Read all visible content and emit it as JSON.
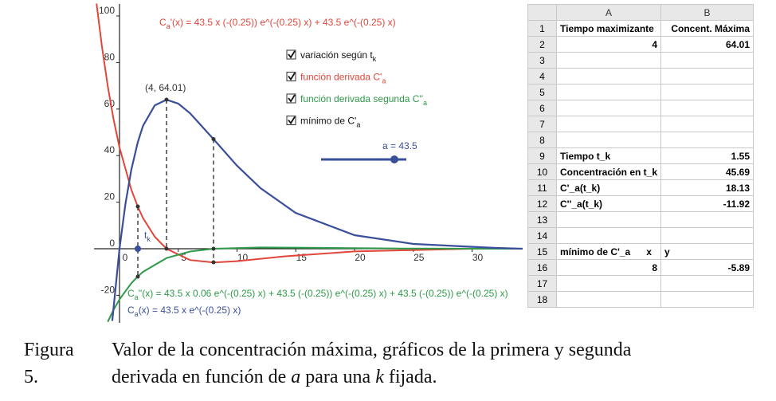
{
  "graph": {
    "y_ticks": [
      "100",
      "80",
      "60",
      "40",
      "20",
      "0",
      "-20"
    ],
    "x_ticks": [
      "0",
      "5",
      "10",
      "15",
      "20",
      "25",
      "30"
    ],
    "formulas": [
      {
        "lead": "C",
        "sub": "a",
        "rest": "'(x) = 43.5 x (-(0.25)) e^(-(0.25) x) + 43.5 e^(-(0.25) x)"
      },
      {
        "lead": "C",
        "sub": "a",
        "rest": "''(x) = 43.5 x 0.06 e^(-(0.25) x) + 43.5 (-(0.25)) e^(-(0.25) x) + 43.5 (-(0.25)) e^(-(0.25) x)"
      },
      {
        "lead": "C",
        "sub": "a",
        "rest": "(x) = 43.5 x e^(-(0.25) x)"
      }
    ],
    "checkboxes": [
      {
        "text": "variación según t",
        "sub": "k"
      },
      {
        "text": "función derivada C'",
        "sub": "a"
      },
      {
        "text": "función derivada segunda C''",
        "sub": "a"
      },
      {
        "text": "mínimo de C'",
        "sub": "a"
      }
    ],
    "point_label": "(4, 64.01)",
    "t_label": {
      "text": "t",
      "sub": "k"
    },
    "slider_label": "a = 43.5"
  },
  "spreadsheet": {
    "columns": [
      "A",
      "B"
    ],
    "rows": [
      {
        "n": "1",
        "a": "Tiempo maximizante",
        "b": "Concent. Máxima"
      },
      {
        "n": "2",
        "a": "4",
        "b": "64.01"
      },
      {
        "n": "3",
        "a": null,
        "b": null
      },
      {
        "n": "4",
        "a": null,
        "b": null
      },
      {
        "n": "5",
        "a": null,
        "b": null
      },
      {
        "n": "6",
        "a": null,
        "b": null
      },
      {
        "n": "7",
        "a": null,
        "b": null
      },
      {
        "n": "8",
        "a": null,
        "b": null
      },
      {
        "n": "9",
        "a": "Tiempo t_k",
        "b": "1.55"
      },
      {
        "n": "10",
        "a": "Concentración en t_k",
        "b": "45.69"
      },
      {
        "n": "11",
        "a": "C'_a(t_k)",
        "b": "18.13"
      },
      {
        "n": "12",
        "a": "C''_a(t_k)",
        "b": "-11.92"
      },
      {
        "n": "13",
        "a": null,
        "b": null
      },
      {
        "n": "14",
        "a": null,
        "b": null
      },
      {
        "n": "15",
        "a": "mínimo de C'_a      x",
        "b": "y"
      },
      {
        "n": "16",
        "a": "8",
        "b": "-5.89"
      },
      {
        "n": "17",
        "a": null,
        "b": null
      },
      {
        "n": "18",
        "a": null,
        "b": null
      }
    ]
  },
  "caption": {
    "label": "Figura 5.",
    "line1": "Valor de la concentración máxima, gráficos de la primera y segunda",
    "line2": [
      "derivada en función de ",
      "a",
      " para una ",
      "k",
      " fijada."
    ]
  }
}
